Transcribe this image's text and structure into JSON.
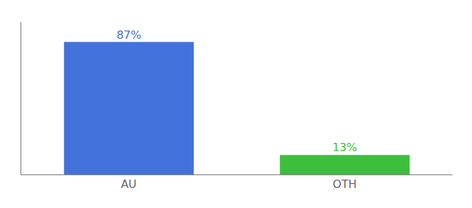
{
  "chart_data": {
    "type": "bar",
    "categories": [
      "AU",
      "OTH"
    ],
    "values": [
      87,
      13
    ],
    "value_labels": [
      "87%",
      "13%"
    ],
    "colors": [
      "#4472db",
      "#3dbf3d"
    ],
    "ylim": [
      0,
      100
    ],
    "data_labels": true,
    "tick_labels": "x"
  }
}
